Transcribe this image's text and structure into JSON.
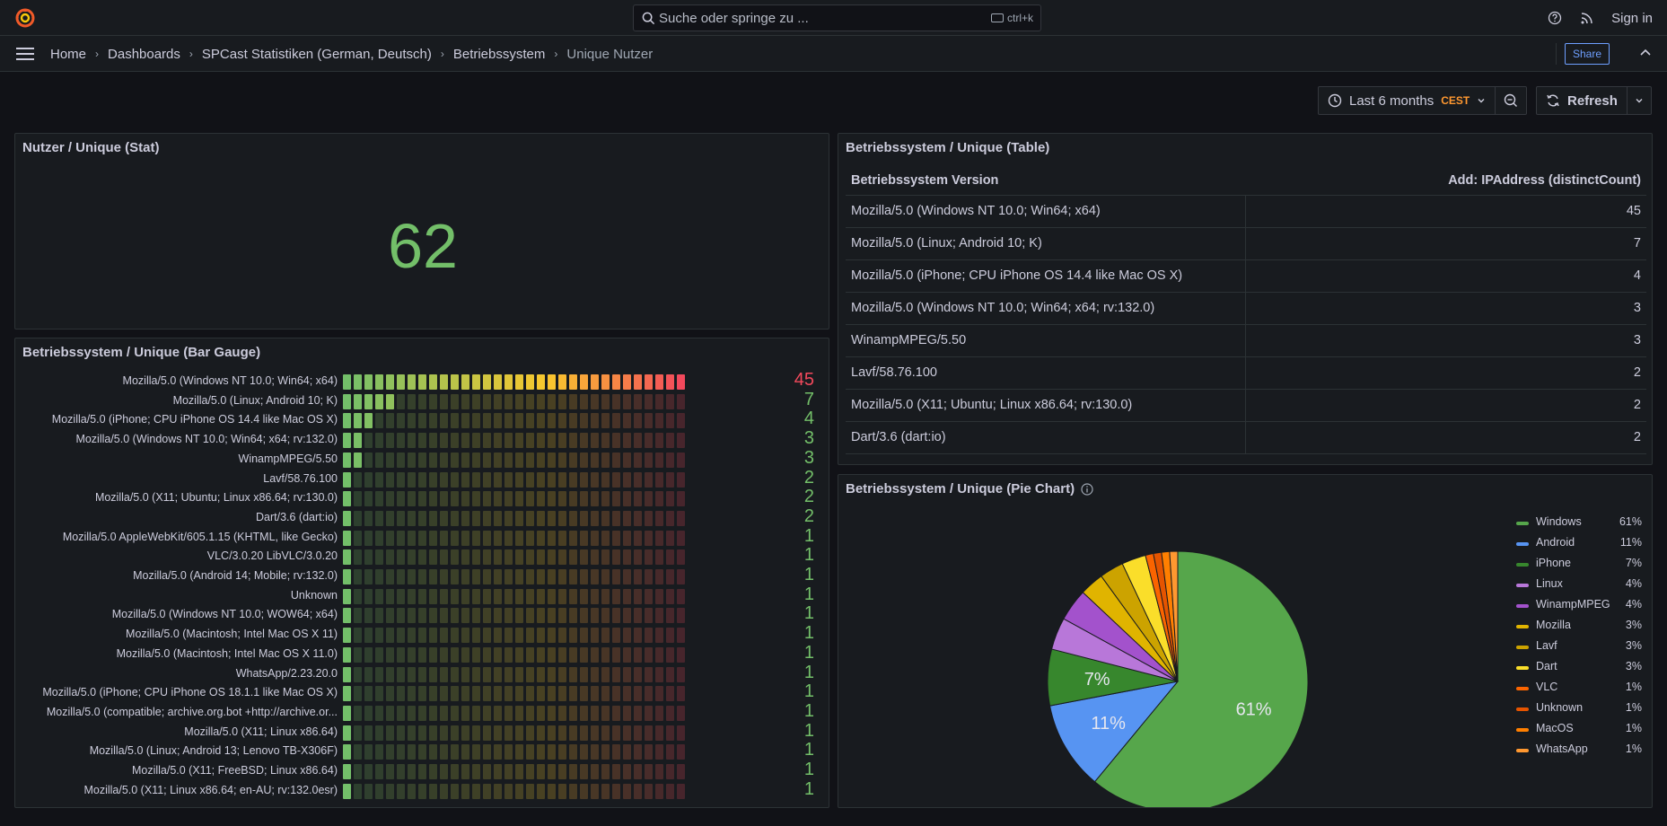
{
  "search": {
    "placeholder": "Suche oder springe zu ...",
    "shortcut": "ctrl+k"
  },
  "header": {
    "signin": "Sign in"
  },
  "breadcrumb": [
    "Home",
    "Dashboards",
    "SPCast Statistiken (German, Deutsch)",
    "Betriebssystem",
    "Unique Nutzer"
  ],
  "toolbar": {
    "share": "Share",
    "time_range": "Last 6 months",
    "timezone": "CEST",
    "refresh": "Refresh"
  },
  "colors": {
    "green": "#73bf69",
    "red": "#f2495c",
    "accent": "#6e9fff",
    "orange": "#ff9830"
  },
  "stat_panel": {
    "title": "Nutzer / Unique (Stat)",
    "value": "62"
  },
  "bar_panel": {
    "title": "Betriebssystem / Unique (Bar Gauge)",
    "max": 45,
    "rows": [
      {
        "label": "Mozilla/5.0 (Windows NT 10.0; Win64; x64)",
        "value": 45
      },
      {
        "label": "Mozilla/5.0 (Linux; Android 10; K)",
        "value": 7
      },
      {
        "label": "Mozilla/5.0 (iPhone; CPU iPhone OS 14.4 like Mac OS X)",
        "value": 4
      },
      {
        "label": "Mozilla/5.0 (Windows NT 10.0; Win64; x64; rv:132.0)",
        "value": 3
      },
      {
        "label": "WinampMPEG/5.50",
        "value": 3
      },
      {
        "label": "Lavf/58.76.100",
        "value": 2
      },
      {
        "label": "Mozilla/5.0 (X11; Ubuntu; Linux x86.64; rv:130.0)",
        "value": 2
      },
      {
        "label": "Dart/3.6 (dart:io)",
        "value": 2
      },
      {
        "label": "Mozilla/5.0 AppleWebKit/605.1.15 (KHTML, like Gecko)",
        "value": 1
      },
      {
        "label": "VLC/3.0.20 LibVLC/3.0.20",
        "value": 1
      },
      {
        "label": "Mozilla/5.0 (Android 14; Mobile; rv:132.0)",
        "value": 1
      },
      {
        "label": "Unknown",
        "value": 1
      },
      {
        "label": "Mozilla/5.0 (Windows NT 10.0; WOW64; x64)",
        "value": 1
      },
      {
        "label": "Mozilla/5.0 (Macintosh; Intel Mac OS X 11)",
        "value": 1
      },
      {
        "label": "Mozilla/5.0 (Macintosh; Intel Mac OS X 11.0)",
        "value": 1
      },
      {
        "label": "WhatsApp/2.23.20.0",
        "value": 1
      },
      {
        "label": "Mozilla/5.0 (iPhone; CPU iPhone OS 18.1.1 like Mac OS X)",
        "value": 1
      },
      {
        "label": "Mozilla/5.0 (compatible; archive.org.bot +http://archive.or...",
        "value": 1
      },
      {
        "label": "Mozilla/5.0 (X11; Linux x86.64)",
        "value": 1
      },
      {
        "label": "Mozilla/5.0 (Linux; Android 13; Lenovo TB-X306F)",
        "value": 1
      },
      {
        "label": "Mozilla/5.0 (X11; FreeBSD; Linux x86.64)",
        "value": 1
      },
      {
        "label": "Mozilla/5.0 (X11; Linux x86.64; en-AU; rv:132.0esr)",
        "value": 1
      }
    ]
  },
  "table_panel": {
    "title": "Betriebssystem / Unique (Table)",
    "columns": [
      "Betriebssystem Version",
      "Add: IPAddress (distinctCount)"
    ],
    "rows": [
      [
        "Mozilla/5.0 (Windows NT 10.0; Win64; x64)",
        "45"
      ],
      [
        "Mozilla/5.0 (Linux; Android 10; K)",
        "7"
      ],
      [
        "Mozilla/5.0 (iPhone; CPU iPhone OS 14.4 like Mac OS X)",
        "4"
      ],
      [
        "Mozilla/5.0 (Windows NT 10.0; Win64; x64; rv:132.0)",
        "3"
      ],
      [
        "WinampMPEG/5.50",
        "3"
      ],
      [
        "Lavf/58.76.100",
        "2"
      ],
      [
        "Mozilla/5.0 (X11; Ubuntu; Linux x86.64; rv:130.0)",
        "2"
      ],
      [
        "Dart/3.6 (dart:io)",
        "2"
      ]
    ]
  },
  "pie_panel": {
    "title": "Betriebssystem / Unique (Pie Chart)"
  },
  "chart_data": [
    {
      "type": "bar",
      "title": "Betriebssystem / Unique (Bar Gauge)",
      "categories": [
        "Mozilla/5.0 (Windows NT 10.0; Win64; x64)",
        "Mozilla/5.0 (Linux; Android 10; K)",
        "Mozilla/5.0 (iPhone; CPU iPhone OS 14.4 like Mac OS X)",
        "Mozilla/5.0 (Windows NT 10.0; Win64; x64; rv:132.0)",
        "WinampMPEG/5.50",
        "Lavf/58.76.100",
        "Mozilla/5.0 (X11; Ubuntu; Linux x86.64; rv:130.0)",
        "Dart/3.6 (dart:io)",
        "Mozilla/5.0 AppleWebKit/605.1.15 (KHTML, like Gecko)",
        "VLC/3.0.20 LibVLC/3.0.20",
        "Mozilla/5.0 (Android 14; Mobile; rv:132.0)",
        "Unknown",
        "Mozilla/5.0 (Windows NT 10.0; WOW64; x64)",
        "Mozilla/5.0 (Macintosh; Intel Mac OS X 11)",
        "Mozilla/5.0 (Macintosh; Intel Mac OS X 11.0)",
        "WhatsApp/2.23.20.0",
        "Mozilla/5.0 (iPhone; CPU iPhone OS 18.1.1 like Mac OS X)",
        "Mozilla/5.0 (compatible; archive.org.bot +http://archive.or...",
        "Mozilla/5.0 (X11; Linux x86.64)",
        "Mozilla/5.0 (Linux; Android 13; Lenovo TB-X306F)",
        "Mozilla/5.0 (X11; FreeBSD; Linux x86.64)",
        "Mozilla/5.0 (X11; Linux x86.64; en-AU; rv:132.0esr)"
      ],
      "values": [
        45,
        7,
        4,
        3,
        3,
        2,
        2,
        2,
        1,
        1,
        1,
        1,
        1,
        1,
        1,
        1,
        1,
        1,
        1,
        1,
        1,
        1
      ],
      "ylim": [
        0,
        45
      ]
    },
    {
      "type": "pie",
      "title": "Betriebssystem / Unique (Pie Chart)",
      "legend": "right",
      "slices": [
        {
          "name": "Windows",
          "value": 61,
          "label": "61%",
          "color": "#56a64b"
        },
        {
          "name": "Android",
          "value": 11,
          "label": "11%",
          "color": "#5794f2"
        },
        {
          "name": "iPhone",
          "value": 7,
          "label": "7%",
          "color": "#37872d"
        },
        {
          "name": "Linux",
          "value": 4,
          "label": "4%",
          "color": "#b877d9"
        },
        {
          "name": "WinampMPEG",
          "value": 4,
          "label": "4%",
          "color": "#a352cc"
        },
        {
          "name": "Mozilla",
          "value": 3,
          "label": "3%",
          "color": "#e0b400"
        },
        {
          "name": "Lavf",
          "value": 3,
          "label": "3%",
          "color": "#cca300"
        },
        {
          "name": "Dart",
          "value": 3,
          "label": "3%",
          "color": "#fade2a"
        },
        {
          "name": "VLC",
          "value": 1,
          "label": "1%",
          "color": "#fa6400"
        },
        {
          "name": "Unknown",
          "value": 1,
          "label": "1%",
          "color": "#e55400"
        },
        {
          "name": "MacOS",
          "value": 1,
          "label": "1%",
          "color": "#ff7f00"
        },
        {
          "name": "WhatsApp",
          "value": 1,
          "label": "1%",
          "color": "#ff9830"
        }
      ]
    }
  ]
}
